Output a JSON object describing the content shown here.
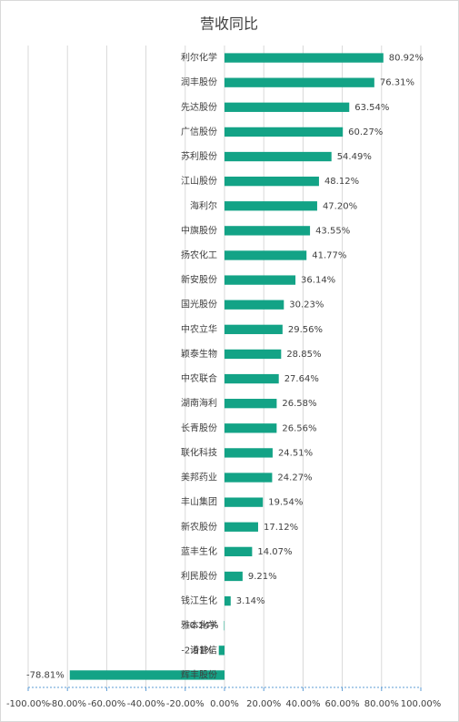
{
  "chart_data": {
    "type": "hbar",
    "title": "营收同比",
    "categories": [
      "利尔化学",
      "润丰股份",
      "先达股份",
      "广信股份",
      "苏利股份",
      "江山股份",
      "海利尔",
      "中旗股份",
      "扬农化工",
      "新安股份",
      "国光股份",
      "中农立华",
      "颖泰生物",
      "中农联合",
      "湖南海利",
      "长青股份",
      "联化科技",
      "美邦药业",
      "丰山集团",
      "新农股份",
      "蓝丰生化",
      "利民股份",
      "钱江生化",
      "雅本化学",
      "诺普信",
      "辉丰股份"
    ],
    "values": [
      80.92,
      76.31,
      63.54,
      60.27,
      54.49,
      48.12,
      47.2,
      43.55,
      41.77,
      36.14,
      30.23,
      29.56,
      28.85,
      27.64,
      26.58,
      26.56,
      24.51,
      24.27,
      19.54,
      17.12,
      14.07,
      9.21,
      3.14,
      -0.24,
      -2.91,
      -78.81
    ],
    "value_labels": [
      "80.92%",
      "76.31%",
      "63.54%",
      "60.27%",
      "54.49%",
      "48.12%",
      "47.20%",
      "43.55%",
      "41.77%",
      "36.14%",
      "30.23%",
      "29.56%",
      "28.85%",
      "27.64%",
      "26.58%",
      "26.56%",
      "24.51%",
      "24.27%",
      "19.54%",
      "17.12%",
      "14.07%",
      "9.21%",
      "3.14%",
      "-0.24%",
      "-2.91%",
      "-78.81%"
    ],
    "color": "#13a386",
    "xlim": [
      -100,
      100
    ],
    "xticks": [
      {
        "value": -100,
        "label": "-100.00%"
      },
      {
        "value": -80,
        "label": "-80.00%"
      },
      {
        "value": -60,
        "label": "-60.00%"
      },
      {
        "value": -40,
        "label": "-40.00%"
      },
      {
        "value": -20,
        "label": "-20.00%"
      },
      {
        "value": 0,
        "label": "0.00%"
      },
      {
        "value": 20,
        "label": "20.00%"
      },
      {
        "value": 40,
        "label": "40.00%"
      },
      {
        "value": 60,
        "label": "60.00%"
      },
      {
        "value": 80,
        "label": "80.00%"
      },
      {
        "value": 100,
        "label": "100.00%"
      }
    ],
    "grid": true
  }
}
